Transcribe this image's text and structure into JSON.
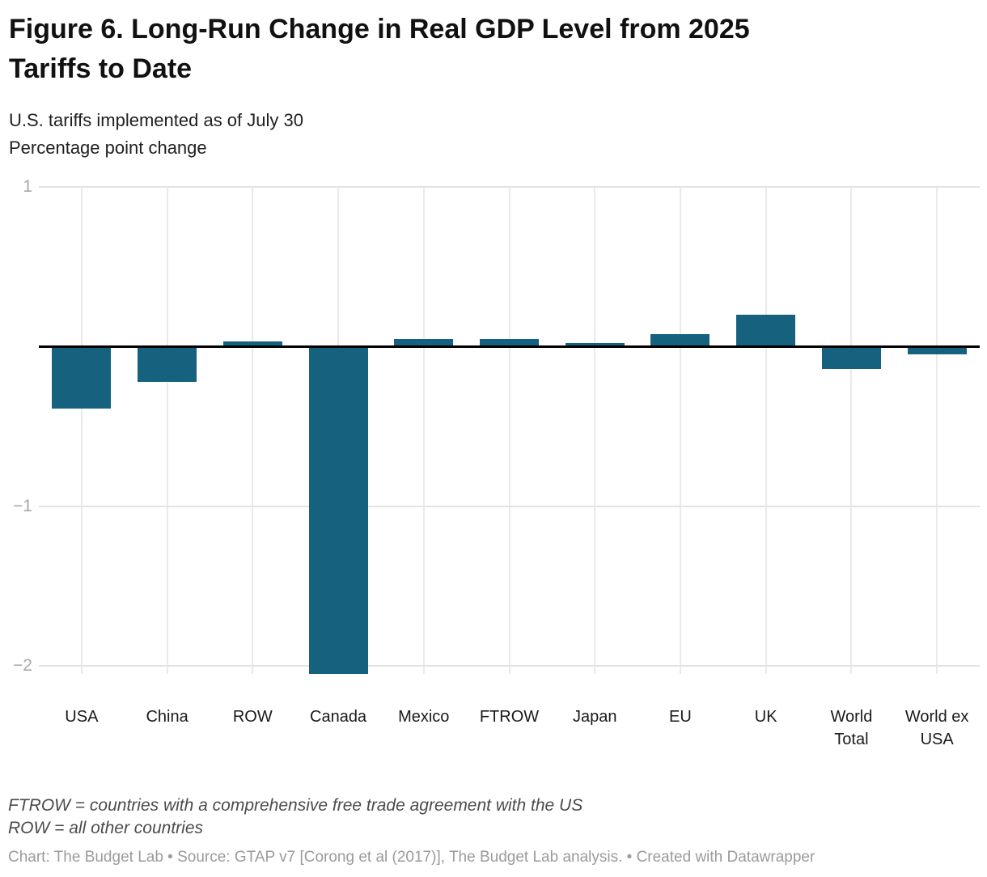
{
  "header": {
    "title": "Figure 6. Long-Run Change in Real GDP Level from 2025\nTariffs to Date",
    "subtitle": "U.S. tariffs implemented as of July 30\nPercentage point change"
  },
  "chart_data": {
    "type": "bar",
    "categories": [
      "USA",
      "China",
      "ROW",
      "Canada",
      "Mexico",
      "FTROW",
      "Japan",
      "EU",
      "UK",
      "World Total",
      "World ex USA"
    ],
    "category_label_lines": [
      "USA",
      "China",
      "ROW",
      "Canada",
      "Mexico",
      "FTROW",
      "Japan",
      "EU",
      "UK",
      "World\nTotal",
      "World ex\nUSA"
    ],
    "values": [
      -0.39,
      -0.22,
      0.03,
      -2.05,
      0.05,
      0.05,
      0.02,
      0.08,
      0.2,
      -0.14,
      -0.05
    ],
    "title": "Figure 6. Long-Run Change in Real GDP Level from 2025 Tariffs to Date",
    "subtitle_line1": "U.S. tariffs implemented as of July 30",
    "ylabel": "Percentage point change",
    "xlabel": "",
    "ylim": [
      -2.05,
      1
    ],
    "yticks": [
      1,
      -1,
      -2
    ],
    "ytick_labels": [
      "1",
      "−1",
      "−2"
    ],
    "grid": true,
    "legend": "none",
    "zero_baseline": true,
    "bar_color": "#16617D",
    "zero_line_color": "#000000",
    "gridline_color": "#e6e6e6",
    "tick_label_color": "#a8a8a8"
  },
  "footer": {
    "notes": "FTROW = countries with a comprehensive free trade agreement with the US\nROW = all other countries",
    "credit": "Chart: The Budget Lab • Source: GTAP v7 [Corong et al (2017)], The Budget Lab analysis. • Created with Datawrapper"
  }
}
